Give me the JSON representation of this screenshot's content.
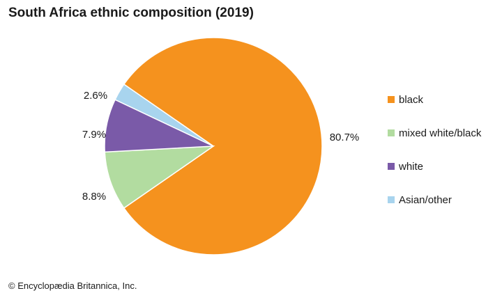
{
  "chart_data": {
    "type": "pie",
    "title": "South Africa ethnic composition (2019)",
    "slices": [
      {
        "label": "black",
        "value": 80.7,
        "display": "80.7%",
        "color": "#f5921e"
      },
      {
        "label": "mixed white/black",
        "value": 8.8,
        "display": "8.8%",
        "color": "#b2dca0"
      },
      {
        "label": "white",
        "value": 7.9,
        "display": "7.9%",
        "color": "#7a5aa8"
      },
      {
        "label": "Asian/other",
        "value": 2.6,
        "display": "2.6%",
        "color": "#a8d4ee"
      }
    ],
    "legend_position": "right"
  },
  "credit": "© Encyclopædia Britannica, Inc."
}
